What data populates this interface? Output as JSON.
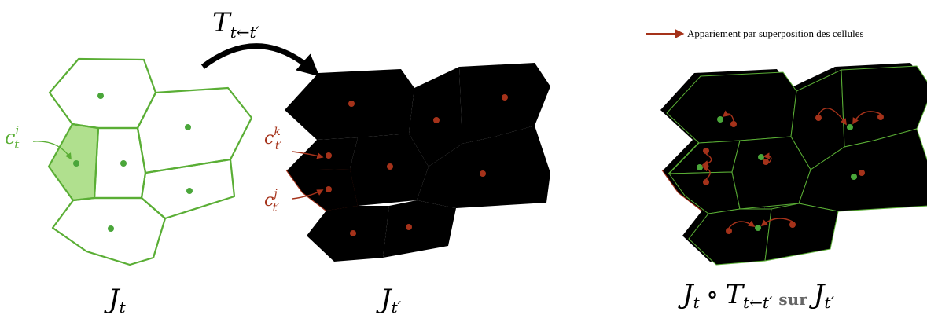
{
  "transform_label": {
    "symbol": "T",
    "subscript": "t←t′"
  },
  "legend": "Appariement par superposition des cellules",
  "annotations": [
    {
      "symbol": "c",
      "superscript": "i",
      "subscript": "t"
    },
    {
      "symbol": "c",
      "superscript": "k",
      "subscript": "t′"
    },
    {
      "symbol": "c",
      "superscript": "j",
      "subscript": "t′"
    }
  ],
  "panels": [
    {
      "title": {
        "symbol": "J",
        "subscript": "t"
      }
    },
    {
      "title": {
        "symbol": "J",
        "subscript": "t′"
      }
    },
    {
      "title": {
        "left_symbol": "J",
        "left_subscript": "t",
        "operator": "∘",
        "middle_symbol": "T",
        "middle_subscript": "t←t′",
        "word": "sur",
        "right_symbol": "J",
        "right_subscript": "t′"
      }
    }
  ]
}
